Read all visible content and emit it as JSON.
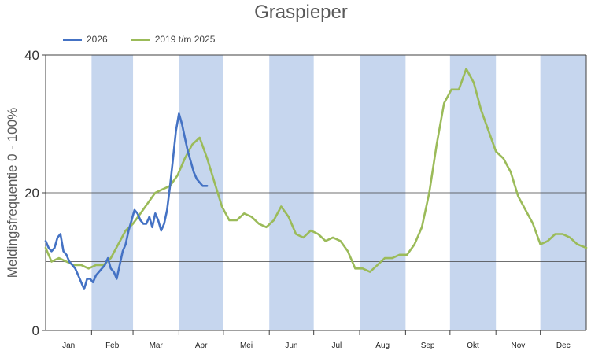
{
  "chart_data": {
    "type": "line",
    "title": "Graspieper",
    "ylabel": "Meldingsfrequentie 0 - 100%",
    "xlabel": "",
    "ylim": [
      0,
      40
    ],
    "yticks": [
      0,
      20,
      40
    ],
    "gridlines_y": [
      10,
      20,
      30
    ],
    "legend_position": "top-left",
    "months": [
      "Jan",
      "Feb",
      "Mar",
      "Apr",
      "Mei",
      "Jun",
      "Jul",
      "Aug",
      "Sep",
      "Okt",
      "Nov",
      "Dec"
    ],
    "shaded_months": [
      "Feb",
      "Apr",
      "Jun",
      "Aug",
      "Okt",
      "Dec"
    ],
    "x_unit": "day of year",
    "xlim": [
      1,
      366
    ],
    "series": [
      {
        "name": "2026",
        "color": "#4472c4",
        "x": [
          1,
          3,
          5,
          7,
          9,
          11,
          13,
          15,
          17,
          19,
          21,
          23,
          25,
          27,
          29,
          31,
          33,
          35,
          37,
          39,
          41,
          43,
          45,
          47,
          49,
          51,
          53,
          55,
          57,
          59,
          61,
          63,
          65,
          67,
          69,
          71,
          73,
          75,
          77,
          79,
          81,
          83,
          85,
          87,
          89,
          91,
          93,
          95,
          97,
          99,
          101,
          103,
          105,
          107,
          110
        ],
        "y": [
          13,
          12,
          11.5,
          12,
          13.5,
          14,
          11.5,
          11,
          10,
          9.5,
          9,
          8,
          7,
          6,
          7.5,
          7.5,
          7,
          8,
          8.5,
          9,
          9.5,
          10.5,
          9,
          8.5,
          7.5,
          9.5,
          11.5,
          12.5,
          14.5,
          16,
          17.5,
          17,
          16,
          15.5,
          15.5,
          16.5,
          15,
          17,
          16,
          14.5,
          15.5,
          17.5,
          21,
          25,
          29,
          31.5,
          30,
          28,
          26,
          24.5,
          23,
          22,
          21.5,
          21,
          21
        ]
      },
      {
        "name": "2019 t/m 2025",
        "color": "#9bbb59",
        "x": [
          1,
          5,
          10,
          15,
          20,
          25,
          30,
          35,
          40,
          45,
          50,
          55,
          60,
          65,
          70,
          75,
          80,
          85,
          90,
          95,
          100,
          105,
          110,
          115,
          120,
          125,
          130,
          135,
          140,
          145,
          150,
          155,
          160,
          165,
          170,
          175,
          180,
          185,
          190,
          195,
          200,
          205,
          210,
          215,
          220,
          225,
          230,
          235,
          240,
          245,
          250,
          255,
          260,
          265,
          270,
          275,
          280,
          285,
          290,
          295,
          300,
          305,
          310,
          315,
          320,
          325,
          330,
          335,
          340,
          345,
          350,
          355,
          360,
          366
        ],
        "y": [
          12,
          10,
          10.5,
          10,
          9.5,
          9.5,
          9,
          9.5,
          9.5,
          10.5,
          12.5,
          14.5,
          15.5,
          17,
          18.5,
          20,
          20.5,
          21,
          22.5,
          25,
          27,
          28,
          25,
          21.5,
          18,
          16,
          16,
          17,
          16.5,
          15.5,
          15,
          16,
          18,
          16.5,
          14,
          13.5,
          14.5,
          14,
          13,
          13.5,
          13,
          11.5,
          9,
          9,
          8.5,
          9.5,
          10.5,
          10.5,
          11,
          11,
          12.5,
          15,
          20,
          27,
          33,
          35,
          35,
          38,
          36,
          32,
          29,
          26,
          25,
          23,
          19.5,
          17.5,
          15.5,
          12.5,
          13,
          14,
          14,
          13.5,
          12.5,
          12
        ]
      }
    ]
  }
}
